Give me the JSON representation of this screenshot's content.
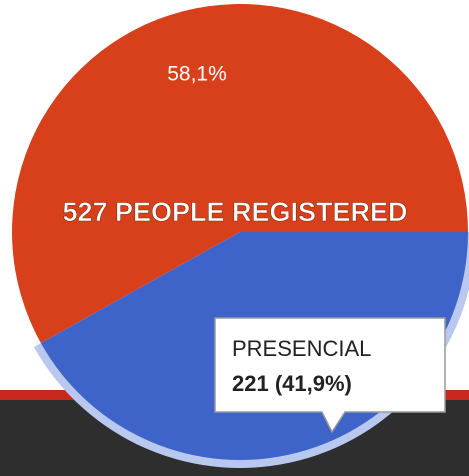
{
  "chart_data": {
    "type": "pie",
    "title": "527 PEOPLE REGISTERED",
    "categories": [
      null,
      "PRESENCIAL"
    ],
    "values": [
      58.1,
      41.9
    ],
    "value_labels": [
      "58,1%",
      "221 (41,9%)"
    ],
    "colors": [
      "#d8401c",
      "#3f64c9"
    ]
  }
}
